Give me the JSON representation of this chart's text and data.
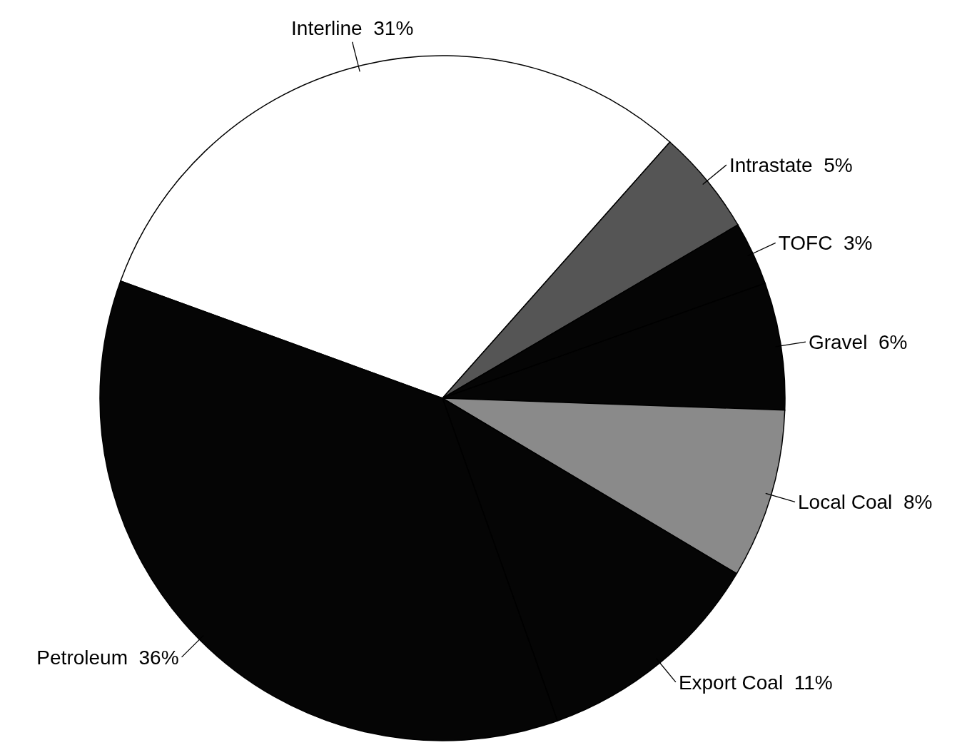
{
  "chart_data": {
    "type": "pie",
    "categories": [
      "Interline",
      "Intrastate",
      "TOFC",
      "Gravel",
      "Local Coal",
      "Export Coal",
      "Petroleum"
    ],
    "values": [
      31,
      5,
      3,
      6,
      8,
      11,
      36
    ],
    "colors": [
      "#ffffff",
      "#555555",
      "#050505",
      "#050505",
      "#8a8a8a",
      "#050505",
      "#050505"
    ],
    "data_labels": true,
    "value_labels": [
      "31%",
      "5%",
      "3%",
      "6%",
      "8%",
      "11%",
      "36%"
    ]
  }
}
